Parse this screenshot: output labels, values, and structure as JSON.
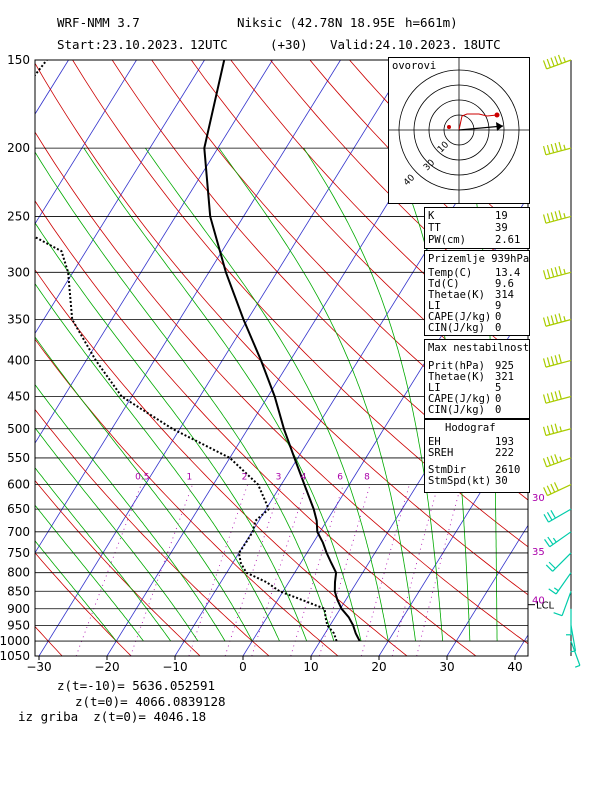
{
  "header": {
    "model": "WRF-NMM 3.7",
    "station": "Niksic (42.78N 18.95E",
    "height": "h=661m)",
    "start": "Start:23.10.2023.",
    "start_hour": "12UTC",
    "lead": "(+30)",
    "valid": "Valid:24.10.2023.",
    "valid_hour": "18UTC"
  },
  "hodograph": {
    "label": "ovorovi",
    "ring_labels": [
      "10",
      "30",
      "40"
    ]
  },
  "indices": [
    {
      "name": "K",
      "value": "19"
    },
    {
      "name": "TT",
      "value": "39"
    },
    {
      "name": "PW(cm)",
      "value": "2.61"
    }
  ],
  "surface": {
    "title": "Prizemlje 939hPa",
    "rows": [
      {
        "name": "Temp(C)",
        "value": "13.4"
      },
      {
        "name": "Td(C)",
        "value": "9.6"
      },
      {
        "name": "Thetae(K)",
        "value": "314"
      },
      {
        "name": "LI",
        "value": "9"
      },
      {
        "name": "CAPE(J/kg)",
        "value": "0"
      },
      {
        "name": "CIN(J/kg)",
        "value": "0"
      }
    ]
  },
  "maxinst": {
    "title": "Max nestabilnost",
    "rows": [
      {
        "name": "Prit(hPa)",
        "value": "925"
      },
      {
        "name": "Thetae(K)",
        "value": "321"
      },
      {
        "name": "LI",
        "value": "5"
      },
      {
        "name": "CAPE(J/kg)",
        "value": "0"
      },
      {
        "name": "CIN(J/kg)",
        "value": "0"
      }
    ]
  },
  "hodo_stats": {
    "title": "Hodograf",
    "rows": [
      {
        "name": "EH",
        "value": "193"
      },
      {
        "name": "SREH",
        "value": "222"
      },
      {
        "name": "StmDir",
        "value": "2610"
      },
      {
        "name": "StmSpd(kt)",
        "value": "30"
      }
    ]
  },
  "footer": {
    "line1": "z(t=-10)= 5636.052591",
    "line2": "z(t=0)= 4066.0839128",
    "line3": "iz griba  z(t=0)= 4046.18"
  },
  "colors": {
    "isobar": "#000000",
    "isotherm": "#3333cc",
    "dry_adiabat": "#cc0000",
    "moist_adiabat": "#00aa00",
    "mixing_ratio": "#aa00aa",
    "temperature": "#000000",
    "dewpoint": "#000000",
    "wind_barb": "#aacc00",
    "wind_barb_low": "#00ccaa"
  },
  "chart_data": {
    "type": "line",
    "xlabel": "",
    "ylabel": "",
    "pressure_levels": [
      150,
      200,
      250,
      300,
      350,
      400,
      450,
      500,
      550,
      600,
      650,
      700,
      750,
      800,
      850,
      900,
      950,
      1000,
      1050
    ],
    "pressure_labels": [
      "150",
      "200",
      "250",
      "300",
      "350",
      "400",
      "450",
      "500",
      "550",
      "600",
      "650",
      "700",
      "750",
      "800",
      "850",
      "900",
      "950",
      "1000",
      "1050"
    ],
    "temperature_ticks": [
      -30,
      -20,
      -10,
      0,
      10,
      20,
      30,
      40
    ],
    "temperature_tick_labels": [
      "−30",
      "−20",
      "−10",
      "0",
      "10",
      "20",
      "30",
      "40"
    ],
    "mixing_ratio_labels": [
      "0.5",
      "1",
      "2",
      "3",
      "4",
      "6",
      "8"
    ],
    "mixing_ratio_values": [
      0.5,
      1,
      2,
      3,
      4,
      6,
      8
    ],
    "lcl_label": "LCL",
    "lcl_pressure": 888,
    "side_speed_labels": [
      "30",
      "35",
      "40"
    ],
    "side_speed_pressures": [
      625,
      745,
      873
    ],
    "series": [
      {
        "name": "temperature",
        "points": [
          [
            1000,
            15.8
          ],
          [
            975,
            14.5
          ],
          [
            950,
            13.4
          ],
          [
            925,
            12.0
          ],
          [
            900,
            10.2
          ],
          [
            875,
            8.8
          ],
          [
            850,
            7.6
          ],
          [
            825,
            6.8
          ],
          [
            800,
            6.1
          ],
          [
            775,
            4.5
          ],
          [
            750,
            2.9
          ],
          [
            725,
            1.4
          ],
          [
            700,
            -0.4
          ],
          [
            675,
            -1.5
          ],
          [
            650,
            -3.0
          ],
          [
            600,
            -6.6
          ],
          [
            550,
            -10.5
          ],
          [
            500,
            -14.7
          ],
          [
            450,
            -19.0
          ],
          [
            400,
            -24.3
          ],
          [
            350,
            -30.6
          ],
          [
            300,
            -37.5
          ],
          [
            250,
            -44.9
          ],
          [
            200,
            -52.0
          ],
          [
            150,
            -57.1
          ]
        ]
      },
      {
        "name": "dewpoint",
        "points": [
          [
            1000,
            12.4
          ],
          [
            975,
            11.3
          ],
          [
            950,
            9.6
          ],
          [
            925,
            8.6
          ],
          [
            900,
            7.7
          ],
          [
            875,
            3.7
          ],
          [
            850,
            -0.5
          ],
          [
            825,
            -3.3
          ],
          [
            800,
            -7.1
          ],
          [
            775,
            -8.8
          ],
          [
            750,
            -10.0
          ],
          [
            725,
            -9.9
          ],
          [
            700,
            -9.9
          ],
          [
            675,
            -10.5
          ],
          [
            650,
            -9.6
          ],
          [
            600,
            -13.4
          ],
          [
            550,
            -20.0
          ],
          [
            500,
            -31.1
          ],
          [
            450,
            -41.5
          ],
          [
            400,
            -48.6
          ],
          [
            350,
            -55.8
          ],
          [
            300,
            -60.7
          ],
          [
            280,
            -63.6
          ],
          [
            250,
            -76.3
          ],
          [
            200,
            -85.2
          ],
          [
            180,
            -84.5
          ],
          [
            150,
            -83.2
          ]
        ]
      }
    ],
    "wind_barbs": [
      {
        "p": 150,
        "dir": 250,
        "spd": 55
      },
      {
        "p": 200,
        "dir": 255,
        "spd": 55
      },
      {
        "p": 250,
        "dir": 255,
        "spd": 55
      },
      {
        "p": 300,
        "dir": 255,
        "spd": 55
      },
      {
        "p": 350,
        "dir": 255,
        "spd": 55
      },
      {
        "p": 400,
        "dir": 255,
        "spd": 50
      },
      {
        "p": 450,
        "dir": 255,
        "spd": 50
      },
      {
        "p": 500,
        "dir": 255,
        "spd": 45
      },
      {
        "p": 550,
        "dir": 250,
        "spd": 45
      },
      {
        "p": 600,
        "dir": 245,
        "spd": 40
      },
      {
        "p": 650,
        "dir": 240,
        "spd": 30
      },
      {
        "p": 700,
        "dir": 235,
        "spd": 25
      },
      {
        "p": 750,
        "dir": 225,
        "spd": 20
      },
      {
        "p": 800,
        "dir": 215,
        "spd": 15
      },
      {
        "p": 850,
        "dir": 200,
        "spd": 10
      },
      {
        "p": 900,
        "dir": 180,
        "spd": 5
      },
      {
        "p": 950,
        "dir": 170,
        "spd": 5
      },
      {
        "p": 1000,
        "dir": 160,
        "spd": 5
      }
    ],
    "hodograph_trace": [
      {
        "u": 0.0,
        "v": 0.0
      },
      {
        "u": 3,
        "v": 14
      },
      {
        "u": 8,
        "v": 16
      },
      {
        "u": 20,
        "v": 16
      },
      {
        "u": 28,
        "v": 14
      },
      {
        "u": 38,
        "v": 15
      }
    ],
    "storm_motion_dir": 2610
  }
}
